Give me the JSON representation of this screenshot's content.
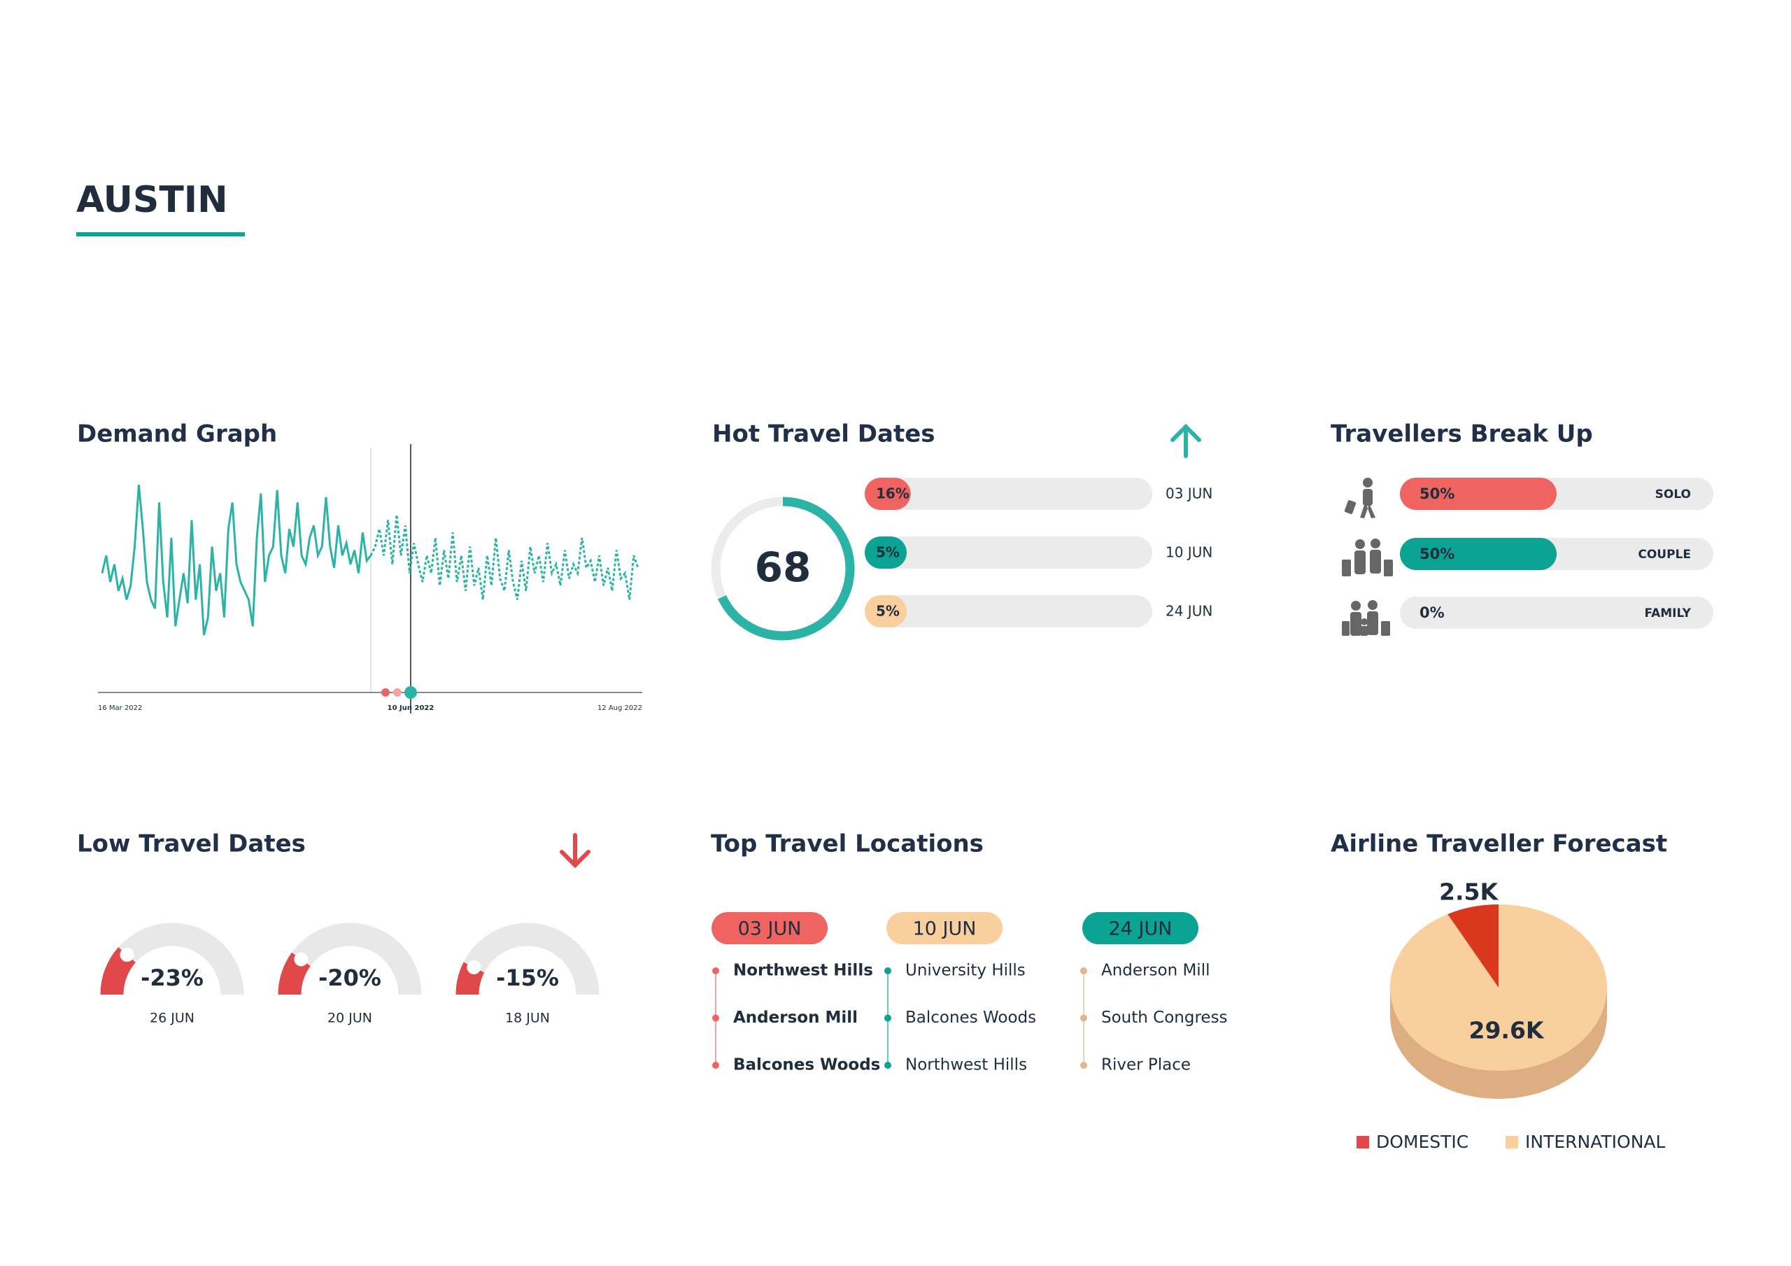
{
  "header": {
    "title": "AUSTIN"
  },
  "demand_graph": {
    "title": "Demand Graph",
    "x_labels": [
      "16 Mar 2022",
      "10 Jun 2022",
      "12 Aug 2022"
    ],
    "actual": [
      45,
      55,
      40,
      50,
      35,
      42,
      30,
      38,
      60,
      95,
      70,
      40,
      30,
      25,
      85,
      40,
      20,
      65,
      15,
      30,
      45,
      28,
      75,
      30,
      50,
      10,
      20,
      60,
      35,
      45,
      20,
      70,
      85,
      50,
      40,
      35,
      30,
      15,
      65,
      90,
      40,
      55,
      60,
      92,
      55,
      45,
      70,
      60,
      85,
      55,
      50,
      65,
      72,
      55,
      60,
      88,
      60,
      48,
      72,
      55,
      62,
      50,
      58,
      45,
      68,
      52,
      55
    ],
    "forecast": [
      55,
      60,
      70,
      55,
      75,
      50,
      78,
      55,
      72,
      45,
      62,
      50,
      40,
      55,
      45,
      65,
      38,
      58,
      42,
      68,
      40,
      55,
      35,
      60,
      38,
      48,
      30,
      55,
      38,
      65,
      42,
      35,
      58,
      40,
      30,
      52,
      35,
      60,
      45,
      55,
      40,
      62,
      45,
      50,
      38,
      58,
      42,
      50,
      45,
      65,
      48,
      52,
      40,
      55,
      38,
      48,
      35,
      58,
      42,
      45,
      30,
      55,
      48
    ]
  },
  "hot_travel_dates": {
    "title": "Hot Travel Dates",
    "score": 68,
    "items": [
      {
        "date": "03 JUN",
        "value": 16,
        "label": "16%",
        "color": "#ef6461"
      },
      {
        "date": "10 JUN",
        "value": 5,
        "label": "5%",
        "color": "#0aa394"
      },
      {
        "date": "24 JUN",
        "value": 5,
        "label": "5%",
        "color": "#f9cf9d"
      }
    ]
  },
  "travellers_break_up": {
    "title": "Travellers Break Up",
    "items": [
      {
        "type": "SOLO",
        "value": 50,
        "label": "50%",
        "color": "#ef6461"
      },
      {
        "type": "COUPLE",
        "value": 50,
        "label": "50%",
        "color": "#0aa394"
      },
      {
        "type": "FAMILY",
        "value": 0,
        "label": "0%",
        "color": "#ef6461"
      }
    ]
  },
  "low_travel_dates": {
    "title": "Low Travel Dates",
    "items": [
      {
        "date": "26 JUN",
        "value": -23,
        "label": "-23%"
      },
      {
        "date": "20 JUN",
        "value": -20,
        "label": "-20%"
      },
      {
        "date": "18 JUN",
        "value": -15,
        "label": "-15%"
      }
    ]
  },
  "top_travel_locations": {
    "title": "Top Travel Locations",
    "columns": [
      {
        "date": "03 JUN",
        "color": "#ef6461",
        "locations": [
          "Northwest Hills",
          "Anderson Mill",
          "Balcones Woods"
        ]
      },
      {
        "date": "10 JUN",
        "color": "#f9cf9d",
        "locations": [
          "University Hills",
          "Balcones Woods",
          "Northwest Hills"
        ]
      },
      {
        "date": "24 JUN",
        "color": "#0aa394",
        "locations": [
          "Anderson Mill",
          "South Congress",
          "River Place"
        ]
      }
    ]
  },
  "airline_traveller_forecast": {
    "title": "Airline Traveller Forecast",
    "slices": [
      {
        "name": "DOMESTIC",
        "value": 2500,
        "label": "2.5K",
        "color": "#d9381e"
      },
      {
        "name": "INTERNATIONAL",
        "value": 29600,
        "label": "29.6K",
        "color": "#f9cf9d"
      }
    ]
  }
}
